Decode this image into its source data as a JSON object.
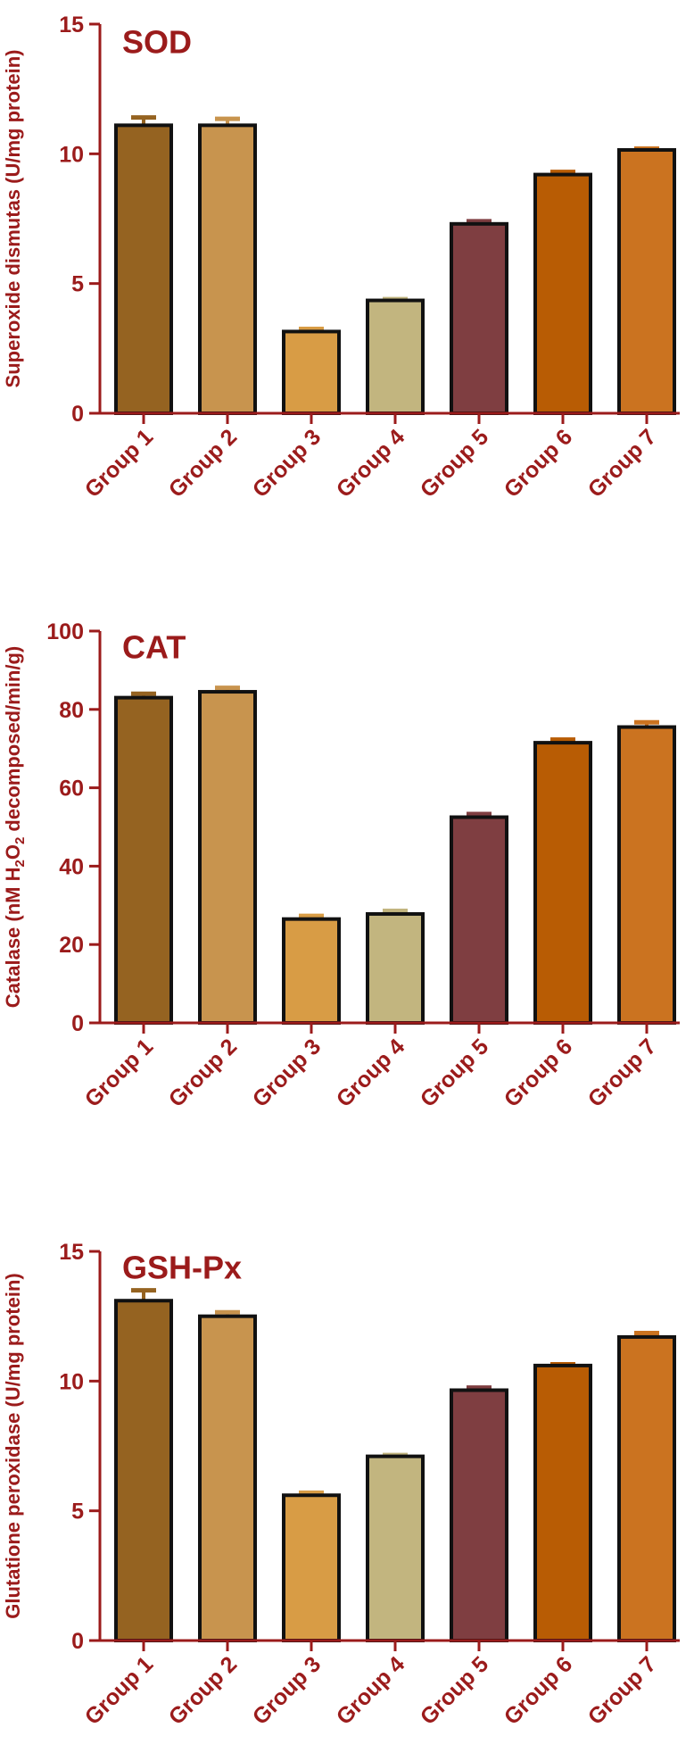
{
  "colors": {
    "axis": "#9b1b1b",
    "text": "#9b1b1b",
    "bar_stroke": "#111111",
    "bars": [
      "#956321",
      "#c8944e",
      "#d89c45",
      "#c2b57f",
      "#7f3e41",
      "#b85c04",
      "#cb7320"
    ]
  },
  "chart_data": [
    {
      "type": "bar",
      "title": "SOD",
      "ylabel": "Superoxide dismutas  (U/mg protein)",
      "ylabel_parts": [
        "Superoxide dismutas  (U/mg protein)"
      ],
      "categories": [
        "Group 1",
        "Group 2",
        "Group 3",
        "Group 4",
        "Group 5",
        "Group 6",
        "Group 7"
      ],
      "values": [
        11.1,
        11.1,
        3.15,
        4.35,
        7.3,
        9.2,
        10.15
      ],
      "errors": [
        0.3,
        0.25,
        0.1,
        0.05,
        0.1,
        0.1,
        0.05
      ],
      "ylim": [
        0,
        15
      ],
      "yticks": [
        "0",
        "5",
        "10",
        "15"
      ],
      "ytick_values": [
        0,
        5,
        10,
        15
      ]
    },
    {
      "type": "bar",
      "title": "CAT",
      "ylabel": "Catalase (nM H2O2 decomposed/min/g)",
      "ylabel_parts": [
        "Catalase (nM H",
        "2",
        "O",
        "2",
        " decomposed/min/g)"
      ],
      "categories": [
        "Group 1",
        "Group 2",
        "Group 3",
        "Group 4",
        "Group 5",
        "Group 6",
        "Group 7"
      ],
      "values": [
        83,
        84.5,
        26.5,
        27.8,
        52.5,
        71.5,
        75.5
      ],
      "errors": [
        1,
        1,
        0.8,
        0.8,
        0.8,
        0.8,
        1.2
      ],
      "ylim": [
        0,
        100
      ],
      "yticks": [
        "0",
        "20",
        "40",
        "60",
        "80",
        "100"
      ],
      "ytick_values": [
        0,
        20,
        40,
        60,
        80,
        100
      ]
    },
    {
      "type": "bar",
      "title": "GSH-Px",
      "ylabel": "Glutatione peroxidase (U/mg protein)",
      "ylabel_parts": [
        "Glutatione peroxidase (U/mg protein)"
      ],
      "categories": [
        "Group 1",
        "Group 2",
        "Group 3",
        "Group 4",
        "Group 5",
        "Group 6",
        "Group 7"
      ],
      "values": [
        13.1,
        12.5,
        5.6,
        7.1,
        9.65,
        10.6,
        11.7
      ],
      "errors": [
        0.4,
        0.15,
        0.1,
        0.05,
        0.1,
        0.05,
        0.15
      ],
      "ylim": [
        0,
        15
      ],
      "yticks": [
        "0",
        "5",
        "10",
        "15"
      ],
      "ytick_values": [
        0,
        5,
        10,
        15
      ]
    }
  ]
}
